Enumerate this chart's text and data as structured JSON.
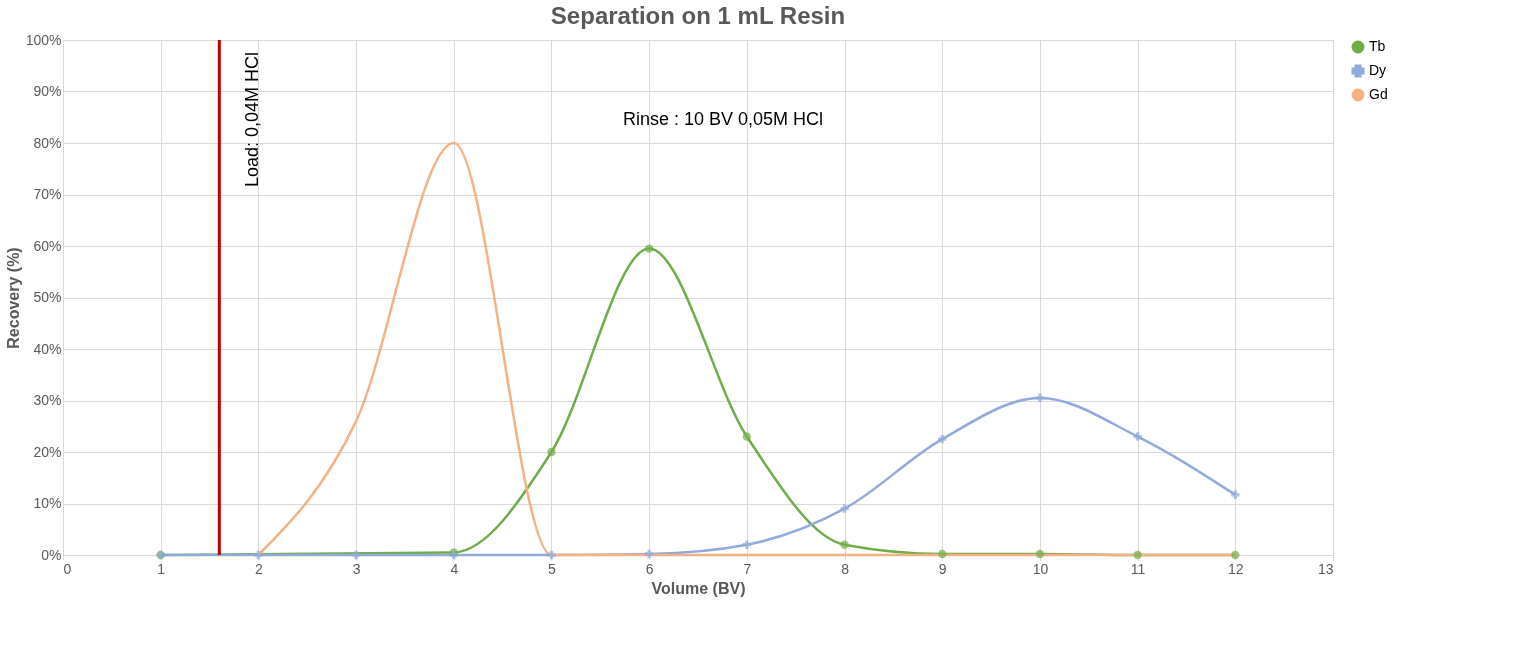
{
  "chart_data": {
    "type": "line",
    "title": "Separation on 1 mL Resin",
    "xlabel": "Volume (BV)",
    "ylabel": "Recovery (%)",
    "xlim": [
      0,
      13
    ],
    "xticks": [
      0,
      1,
      2,
      3,
      4,
      5,
      6,
      7,
      8,
      9,
      10,
      11,
      12,
      13
    ],
    "ylim": [
      0,
      100
    ],
    "yticks": [
      {
        "value": 0,
        "label": "0%"
      },
      {
        "value": 10,
        "label": "10%"
      },
      {
        "value": 20,
        "label": "20%"
      },
      {
        "value": 30,
        "label": "30%"
      },
      {
        "value": 40,
        "label": "40%"
      },
      {
        "value": 50,
        "label": "50%"
      },
      {
        "value": 60,
        "label": "60%"
      },
      {
        "value": 70,
        "label": "70%"
      },
      {
        "value": 80,
        "label": "80%"
      },
      {
        "value": 90,
        "label": "90%"
      },
      {
        "value": 100,
        "label": "100%"
      }
    ],
    "grid": true,
    "legend": "right",
    "series": [
      {
        "name": "Tb",
        "color": "#70ad47",
        "marker": "circle",
        "x": [
          1,
          4,
          5,
          6,
          7,
          8,
          9,
          10,
          11,
          12
        ],
        "values": [
          0,
          0.5,
          20,
          59.5,
          23,
          2,
          0.2,
          0.2,
          0,
          0
        ]
      },
      {
        "name": "Dy",
        "color": "#8faadc",
        "marker": "cross",
        "x": [
          1,
          2,
          3,
          4,
          5,
          6,
          7,
          8,
          9,
          10,
          11,
          12
        ],
        "values": [
          0,
          0,
          0,
          0,
          0,
          0.2,
          2,
          9,
          22.5,
          30.5,
          23,
          11.7
        ]
      },
      {
        "name": "Gd",
        "color": "#f4b183",
        "marker": "none",
        "x": [
          2,
          3,
          4,
          5,
          6,
          7,
          8,
          9,
          10,
          11,
          12
        ],
        "values": [
          0,
          26,
          80,
          0,
          0,
          0,
          0,
          0,
          0,
          0,
          0
        ]
      }
    ],
    "ref_lines": [
      {
        "axis": "x",
        "value": 1.6,
        "color": "#c00000"
      }
    ],
    "annotations": [
      "Load: 0,04M HCl",
      "Rinse : 10 BV 0,05M HCl"
    ]
  }
}
